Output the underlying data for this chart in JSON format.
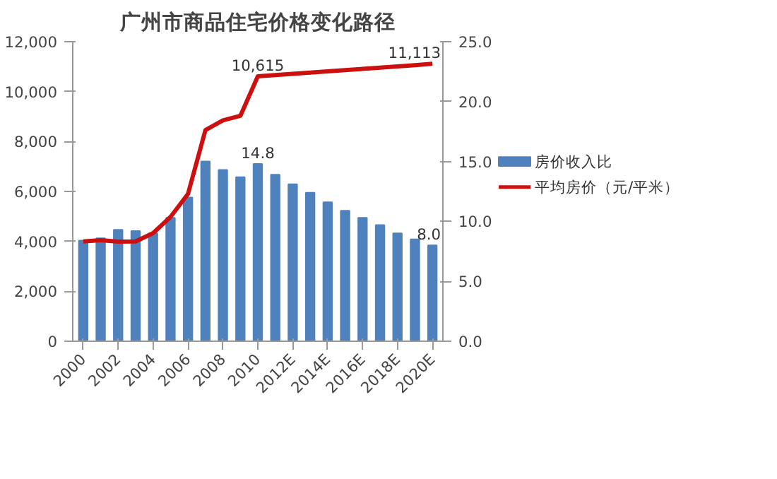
{
  "chart_data": {
    "type": "bar",
    "title": "广州市商品住宅价格变化路径",
    "categories": [
      "2000",
      null,
      "2002",
      null,
      "2004",
      null,
      "2006",
      null,
      "2008",
      null,
      "2010",
      null,
      "2012E",
      null,
      "2014E",
      null,
      "2016E",
      null,
      "2018E",
      null,
      "2020E"
    ],
    "series": [
      {
        "name": "房价收入比",
        "axis": "y2",
        "color": "#4f81bd",
        "values": [
          8.4,
          8.6,
          9.3,
          9.2,
          9.0,
          10.3,
          12.0,
          15.0,
          14.3,
          13.7,
          14.8,
          13.9,
          13.1,
          12.4,
          11.6,
          10.9,
          10.3,
          9.7,
          9.0,
          8.5,
          8.0
        ],
        "value_labels": [
          null,
          null,
          null,
          null,
          null,
          null,
          null,
          null,
          null,
          null,
          "14.8",
          null,
          null,
          null,
          null,
          null,
          null,
          null,
          null,
          null,
          "8.0"
        ]
      },
      {
        "name": "平均房价（元/平米）",
        "type": "line",
        "color": "#cc1010",
        "values": [
          4000,
          4050,
          3990,
          4000,
          4330,
          4980,
          5900,
          8460,
          8850,
          9030,
          10615,
          10660,
          10710,
          10760,
          10810,
          10860,
          10910,
          10960,
          11010,
          11060,
          11113
        ],
        "value_labels": [
          null,
          null,
          null,
          null,
          null,
          null,
          null,
          null,
          null,
          null,
          "10,615",
          null,
          null,
          null,
          null,
          null,
          null,
          null,
          null,
          null,
          "11,113"
        ]
      }
    ],
    "ylim": [
      0,
      12000
    ],
    "yticks": [
      {
        "value": 0,
        "label": "0"
      },
      {
        "value": 2000,
        "label": "2,000"
      },
      {
        "value": 4000,
        "label": "4,000"
      },
      {
        "value": 6000,
        "label": "6,000"
      },
      {
        "value": 8000,
        "label": "8,000"
      },
      {
        "value": 10000,
        "label": "10,000"
      },
      {
        "value": 12000,
        "label": "12,000"
      }
    ],
    "y2lim": [
      0,
      25
    ],
    "y2ticks": [
      {
        "value": 0,
        "label": "0.0"
      },
      {
        "value": 5,
        "label": "5.0"
      },
      {
        "value": 10,
        "label": "10.0"
      },
      {
        "value": 15,
        "label": "15.0"
      },
      {
        "value": 20,
        "label": "20.0"
      },
      {
        "value": 25,
        "label": "25.0"
      }
    ],
    "grid": false,
    "legend": "right"
  }
}
